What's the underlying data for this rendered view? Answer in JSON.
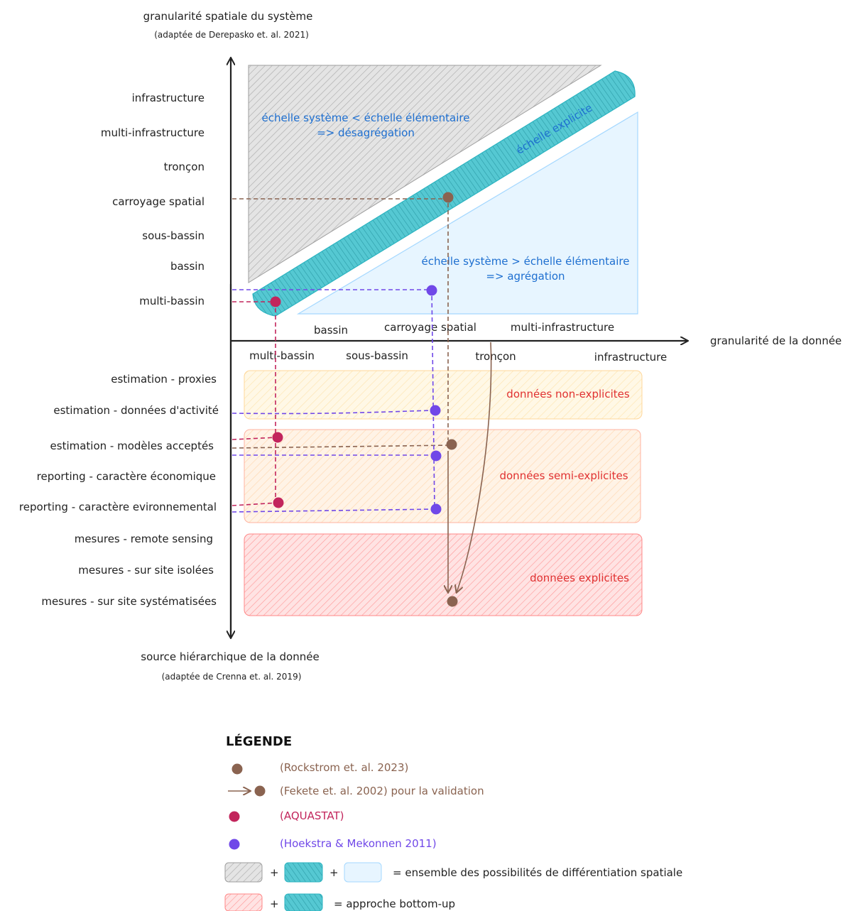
{
  "top_axis": {
    "title": "granularité spatiale du système",
    "subtitle": "(adaptée de Derepasko et. al. 2021)",
    "levels": [
      "infrastructure",
      "multi-infrastructure",
      "tronçon",
      "carroyage spatial",
      "sous-bassin",
      "bassin",
      "multi-bassin"
    ]
  },
  "x_axis": {
    "title": "granularité de la donnée",
    "upper_ticks": [
      "bassin",
      "carroyage spatial",
      "multi-infrastructure"
    ],
    "lower_ticks": [
      "multi-bassin",
      "sous-bassin",
      "tronçon",
      "infrastructure"
    ]
  },
  "bottom_axis": {
    "title": "source hiérarchique de la donnée",
    "subtitle": "(adaptée de Crenna et. al. 2019)",
    "levels": [
      "estimation - proxies",
      "estimation - données d'activité",
      "estimation - modèles acceptés",
      "reporting - caractère économique",
      "reporting - caractère evironnemental",
      "mesures - remote sensing",
      "mesures - sur site isolées",
      "mesures - sur site systématisées"
    ]
  },
  "zones": {
    "disaggregation_line1": "échelle système < échelle élémentaire",
    "disaggregation_line2": "=> désagrégation",
    "explicit_band": "échelle explicite",
    "aggregation_line1": "échelle système > échelle élémentaire",
    "aggregation_line2": "=> agrégation",
    "non_explicit": "données non-explicites",
    "semi_explicit": "données semi-explicites",
    "explicit": "données explicites"
  },
  "legend": {
    "title": "LÉGENDE",
    "rockstrom": "(Rockstrom et. al. 2023)",
    "fekete": "(Fekete et. al. 2002) pour la validation",
    "aquastat": "(AQUASTAT)",
    "hoekstra": "(Hoekstra & Mekonnen 2011)",
    "plus": "+",
    "spatial_label": "= ensemble des possibilités de différentiation spatiale",
    "bottomup_label": "=  approche bottom-up"
  },
  "colors": {
    "gray": "#9e9e9e",
    "teal": "#2bb3c0",
    "lightblue": "#a5d8ff",
    "brown": "#8a6350",
    "crimson": "#c2255c",
    "violet": "#7048e8",
    "red_text": "#e03131",
    "blue_text": "#1e6fd0"
  }
}
